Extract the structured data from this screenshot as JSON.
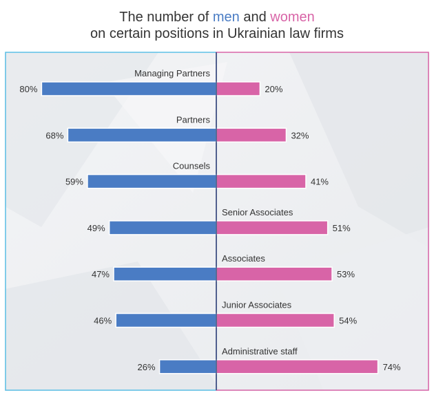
{
  "title": {
    "line1_prefix": "The number of",
    "men_word": "men",
    "and_word": "and",
    "women_word": "women",
    "line2": "on certain positions in Ukrainian law firms"
  },
  "colors": {
    "men": "#4a7cc4",
    "women": "#d864a7",
    "left_border": "#5bc0e6",
    "right_border": "#d864a7"
  },
  "chart_data": {
    "type": "bar",
    "categories": [
      "Managing Partners",
      "Partners",
      "Counsels",
      "Senior Associates",
      "Associates",
      "Junior Associates",
      "Administrative staff"
    ],
    "series": [
      {
        "name": "men",
        "values": [
          80,
          68,
          59,
          49,
          47,
          46,
          26
        ]
      },
      {
        "name": "women",
        "values": [
          20,
          32,
          41,
          51,
          53,
          54,
          74
        ]
      }
    ],
    "unit": "%",
    "xlim": [
      0,
      100
    ],
    "grid": false
  }
}
